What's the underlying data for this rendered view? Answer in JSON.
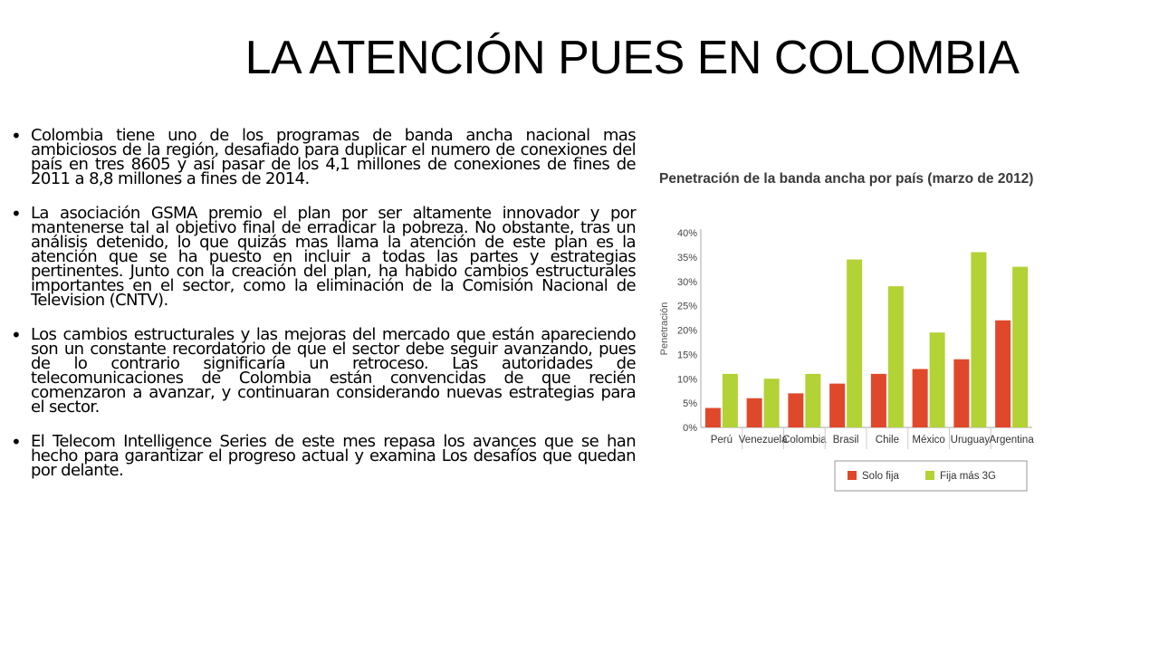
{
  "title": "LA ATENCIÓN PUES EN COLOMBIA",
  "bullets": [
    "Colombia tiene uno de los programas de banda ancha nacional mas ambiciosos de la región, desafiado para duplicar el numero de conexiones del país en tres 8605 y así pasar de los 4,1 millones de conexiones de fines de 2011 a 8,8 millones a fines de 2014.",
    "La asociación GSMA premio el plan por ser altamente innovador y por mantenerse tal al objetivo final de erradicar la pobreza. No obstante, tras un análisis detenido, lo que quizás mas llama la atención de este plan es la atención que se ha puesto en incluir a todas las partes y estrategias pertinentes. Junto con la creación del plan, ha habido cambios estructurales importantes en el sector, como la eliminación de la Comisión Nacional de Television (CNTV).",
    "Los cambios estructurales y las mejoras del mercado que están apareciendo son un constante recordatorio de que el sector debe seguir avanzando, pues de lo contrario significaría un retroceso. Las autoridades de telecomunicaciones de Colombia están convencidas de que recién comenzaron a avanzar, y continuaran considerando nuevas estrategias para el sector.",
    "El Telecom Intelligence Series de este mes repasa los avances que se han hecho para garantizar el progreso actual y examina Los desafíos que quedan por delante."
  ],
  "chart_data": {
    "type": "bar",
    "title": "Penetración de la banda ancha por país (marzo de 2012)",
    "xlabel": "",
    "ylabel": "Penetración",
    "ylim": [
      0,
      40
    ],
    "yticks": [
      "0%",
      "5%",
      "10%",
      "15%",
      "20%",
      "25%",
      "30%",
      "35%",
      "40%"
    ],
    "grid": false,
    "legend_position": "bottom",
    "categories": [
      "Perú",
      "Venezuela",
      "Colombia",
      "Brasil",
      "Chile",
      "México",
      "Uruguay",
      "Argentina"
    ],
    "series": [
      {
        "name": "Solo fija",
        "color": "#e0482b",
        "values": [
          4,
          6,
          7,
          9,
          11,
          12,
          14,
          22
        ]
      },
      {
        "name": "Fija más 3G",
        "color": "#b2d235",
        "values": [
          11,
          10,
          11,
          34.5,
          29,
          19.5,
          36,
          33
        ]
      }
    ]
  }
}
